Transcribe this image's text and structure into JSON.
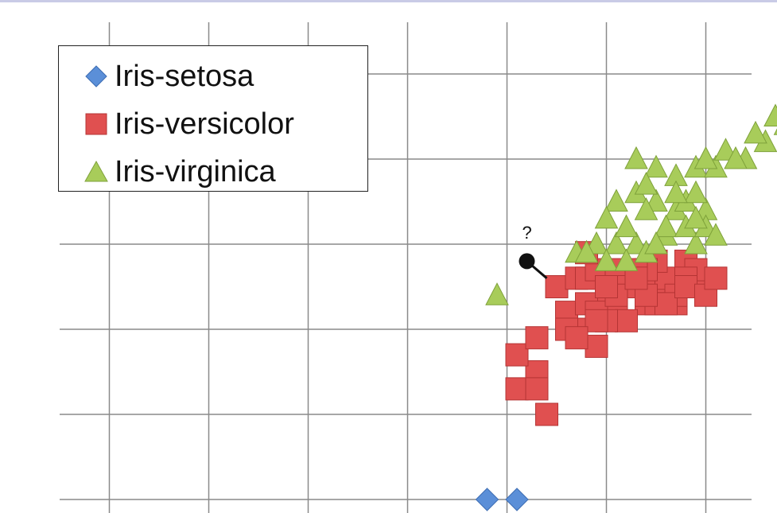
{
  "chart_data": {
    "type": "scatter",
    "title": "",
    "xlabel": "",
    "ylabel": "",
    "xlim": [
      0,
      7
    ],
    "ylim": [
      0,
      5
    ],
    "grid": true,
    "x_grid_lines": [
      0.5,
      1.5,
      2.5,
      3.5,
      4.5,
      5.5,
      6.5
    ],
    "y_grid_lines": [
      0,
      1,
      2,
      3,
      4,
      5
    ],
    "legend_placement": "top-left",
    "series": [
      {
        "name": "Iris-setosa",
        "marker": "diamond",
        "color": "#5b8fd8",
        "points": [
          [
            4.3,
            0.0
          ],
          [
            4.6,
            0.0
          ]
        ]
      },
      {
        "name": "Iris-versicolor",
        "marker": "square",
        "color": "#e05050",
        "points": [
          [
            4.6,
            1.3
          ],
          [
            4.9,
            1.0
          ],
          [
            4.8,
            1.5
          ],
          [
            4.6,
            1.7
          ],
          [
            4.8,
            1.9
          ],
          [
            4.8,
            1.3
          ],
          [
            5.1,
            2.2
          ],
          [
            5.0,
            2.5
          ],
          [
            5.2,
            2.6
          ],
          [
            5.3,
            2.6
          ],
          [
            5.4,
            2.7
          ],
          [
            5.5,
            2.4
          ],
          [
            5.6,
            2.7
          ],
          [
            5.2,
            2.0
          ],
          [
            5.4,
            1.8
          ],
          [
            5.5,
            2.3
          ],
          [
            5.6,
            2.3
          ],
          [
            5.8,
            2.5
          ],
          [
            5.9,
            2.3
          ],
          [
            6.0,
            2.5
          ],
          [
            6.1,
            2.6
          ],
          [
            5.7,
            2.1
          ],
          [
            6.0,
            2.3
          ],
          [
            6.2,
            2.3
          ],
          [
            5.7,
            2.5
          ],
          [
            5.3,
            2.3
          ],
          [
            5.5,
            2.1
          ],
          [
            5.4,
            2.2
          ],
          [
            6.0,
            2.8
          ],
          [
            5.9,
            2.7
          ],
          [
            6.3,
            2.8
          ],
          [
            6.5,
            2.5
          ],
          [
            6.4,
            2.7
          ],
          [
            6.3,
            2.6
          ],
          [
            6.2,
            2.4
          ],
          [
            6.1,
            2.3
          ],
          [
            5.3,
            2.9
          ],
          [
            5.7,
            2.5
          ],
          [
            5.9,
            2.4
          ],
          [
            5.8,
            2.7
          ],
          [
            6.3,
            2.5
          ],
          [
            6.5,
            2.4
          ],
          [
            5.4,
            2.1
          ],
          [
            5.1,
            2.0
          ],
          [
            5.2,
            1.9
          ],
          [
            5.6,
            2.4
          ],
          [
            5.5,
            2.5
          ],
          [
            5.8,
            2.6
          ],
          [
            6.6,
            2.6
          ]
        ]
      },
      {
        "name": "Iris-virginica",
        "marker": "triangle",
        "color": "#a8cc5a",
        "points": [
          [
            4.4,
            2.4
          ],
          [
            5.2,
            2.9
          ],
          [
            5.4,
            3.0
          ],
          [
            5.6,
            3.0
          ],
          [
            5.8,
            3.0
          ],
          [
            5.5,
            2.8
          ],
          [
            5.9,
            2.9
          ],
          [
            6.1,
            3.1
          ],
          [
            6.4,
            3.0
          ],
          [
            5.3,
            2.9
          ],
          [
            5.7,
            2.8
          ],
          [
            5.6,
            3.5
          ],
          [
            5.8,
            3.6
          ],
          [
            6.0,
            3.5
          ],
          [
            6.2,
            3.4
          ],
          [
            6.3,
            3.5
          ],
          [
            6.5,
            3.4
          ],
          [
            6.4,
            3.6
          ],
          [
            6.0,
            3.9
          ],
          [
            6.2,
            3.8
          ],
          [
            6.4,
            3.9
          ],
          [
            6.6,
            3.9
          ],
          [
            5.8,
            4.0
          ],
          [
            6.1,
            3.2
          ],
          [
            6.3,
            3.2
          ],
          [
            6.5,
            3.2
          ],
          [
            6.7,
            4.1
          ],
          [
            6.9,
            4.0
          ],
          [
            7.1,
            4.2
          ],
          [
            7.3,
            4.4
          ],
          [
            7.0,
            4.3
          ],
          [
            7.2,
            4.5
          ],
          [
            6.8,
            4.0
          ],
          [
            6.5,
            4.0
          ],
          [
            5.9,
            3.4
          ],
          [
            5.7,
            3.2
          ],
          [
            6.0,
            3.0
          ],
          [
            6.2,
            3.6
          ],
          [
            6.4,
            3.3
          ],
          [
            6.6,
            3.1
          ],
          [
            5.5,
            3.3
          ],
          [
            5.9,
            3.7
          ]
        ]
      }
    ],
    "annotations": [
      {
        "text": "?",
        "point": [
          4.7,
          2.8
        ],
        "connects_to": [
          4.9,
          2.6
        ],
        "color": "#111111"
      }
    ]
  }
}
